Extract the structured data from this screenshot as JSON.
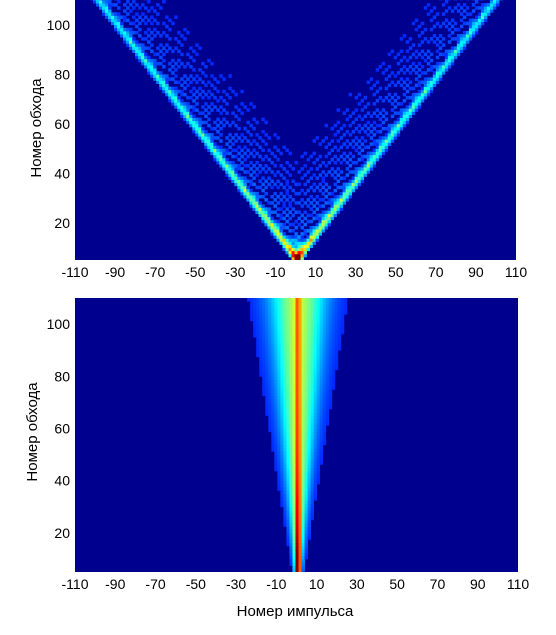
{
  "chart_data": [
    {
      "type": "heatmap",
      "title": "",
      "xlabel": "",
      "ylabel": "Номер обхода",
      "xlim": [
        -110,
        110
      ],
      "ylim": [
        5,
        110
      ],
      "xticks": [
        -110,
        -90,
        -70,
        -50,
        -30,
        -10,
        10,
        30,
        50,
        70,
        90,
        110
      ],
      "yticks": [
        20,
        40,
        60,
        80,
        100
      ],
      "pattern": "V-shaped spreading: intensity fronts at x = ±0.95·(y−5) from origin x=0, interference fringes inside the cone",
      "colormap": "jet",
      "background_color": "#00008f",
      "grid": false
    },
    {
      "type": "heatmap",
      "title": "",
      "xlabel": "Номер импульса",
      "ylabel": "Номер обхода",
      "xlim": [
        -110,
        110
      ],
      "ylim": [
        5,
        110
      ],
      "xticks": [
        -110,
        -90,
        -70,
        -50,
        -30,
        -10,
        10,
        30,
        50,
        70,
        90,
        110
      ],
      "yticks": [
        20,
        40,
        60,
        80,
        100
      ],
      "pattern": "Localized vertical band centered at x=0, high intensity near axis, slight widening with y",
      "colormap": "jet",
      "background_color": "#00008f",
      "grid": false
    }
  ]
}
